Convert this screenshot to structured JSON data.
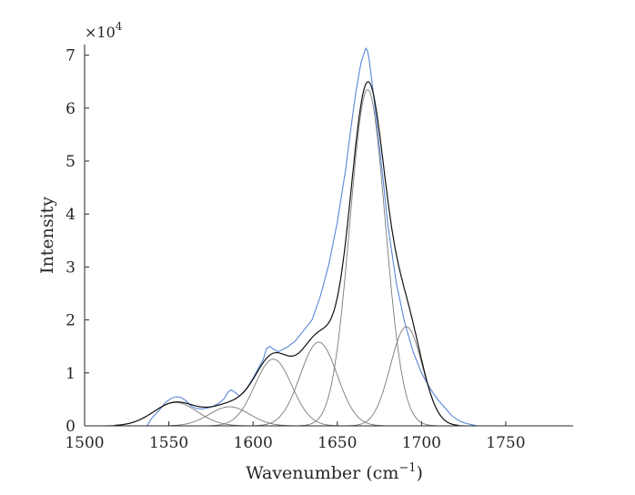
{
  "chart_data": {
    "type": "line",
    "xlabel": "Wavenumber (cm",
    "xlabel_exp": "−1",
    "xlabel_close": ")",
    "ylabel": "Intensity",
    "y_multiplier": "×10",
    "y_multiplier_exp": "4",
    "xlim": [
      1500,
      1790
    ],
    "ylim": [
      0,
      72000
    ],
    "x_ticks": [
      1500,
      1550,
      1600,
      1650,
      1700,
      1750
    ],
    "y_ticks": [
      0,
      10000,
      20000,
      30000,
      40000,
      50000,
      60000,
      70000
    ],
    "x_tick_labels": [
      "1500",
      "1550",
      "1600",
      "1650",
      "1700",
      "1750"
    ],
    "y_tick_labels": [
      "0",
      "1",
      "2",
      "3",
      "4",
      "5",
      "6",
      "7"
    ],
    "grid": false,
    "legend": "none",
    "components": [
      {
        "center": 1554,
        "amplitude": 4400,
        "sigma": 13
      },
      {
        "center": 1586,
        "amplitude": 3600,
        "sigma": 12
      },
      {
        "center": 1612,
        "amplitude": 12600,
        "sigma": 11
      },
      {
        "center": 1639,
        "amplitude": 15800,
        "sigma": 11
      },
      {
        "center": 1668,
        "amplitude": 63500,
        "sigma": 10.5
      },
      {
        "center": 1691,
        "amplitude": 18700,
        "sigma": 9.5
      }
    ],
    "measured": {
      "x": [
        1537,
        1540,
        1545,
        1548,
        1551,
        1554,
        1557,
        1560,
        1563,
        1566,
        1570,
        1575,
        1580,
        1583,
        1585,
        1587,
        1589,
        1592,
        1596,
        1600,
        1603,
        1606,
        1608,
        1610,
        1612,
        1615,
        1620,
        1625,
        1630,
        1635,
        1640,
        1645,
        1650,
        1655,
        1658,
        1661,
        1664,
        1666,
        1667,
        1668,
        1669,
        1671,
        1674,
        1677,
        1680,
        1685,
        1690,
        1695,
        1700,
        1705,
        1710,
        1715,
        1718,
        1722,
        1726,
        1730,
        1733
      ],
      "y": [
        0,
        1500,
        3200,
        4400,
        5100,
        5500,
        5400,
        4800,
        3800,
        3300,
        3200,
        3500,
        4300,
        5200,
        6300,
        6800,
        6400,
        5600,
        7000,
        9000,
        10800,
        12500,
        14600,
        15000,
        14500,
        14000,
        14800,
        16000,
        18000,
        20000,
        24500,
        30500,
        38500,
        48500,
        56000,
        63000,
        68500,
        70500,
        71300,
        70800,
        69000,
        64000,
        55500,
        47000,
        38000,
        27000,
        19500,
        14000,
        10000,
        7100,
        4800,
        3000,
        1900,
        1000,
        500,
        200,
        0
      ]
    }
  }
}
